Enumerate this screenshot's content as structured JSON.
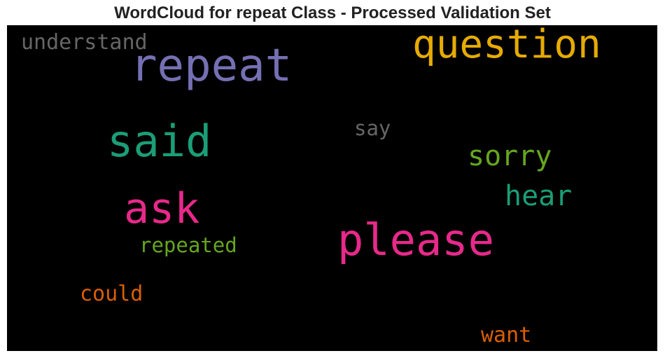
{
  "title": "WordCloud for repeat Class - Processed Validation Set",
  "background_color": "#000000",
  "words": [
    {
      "text": "repeat",
      "color": "#7570b3"
    },
    {
      "text": "question",
      "color": "#e6ab02"
    },
    {
      "text": "said",
      "color": "#1b9e77"
    },
    {
      "text": "please",
      "color": "#e7298a"
    },
    {
      "text": "ask",
      "color": "#e7298a"
    },
    {
      "text": "sorry",
      "color": "#66a61e"
    },
    {
      "text": "hear",
      "color": "#1b9e77"
    },
    {
      "text": "understand",
      "color": "#666666"
    },
    {
      "text": "say",
      "color": "#666666"
    },
    {
      "text": "repeated",
      "color": "#66a61e"
    },
    {
      "text": "could",
      "color": "#d95f02"
    },
    {
      "text": "want",
      "color": "#d95f02"
    }
  ]
}
